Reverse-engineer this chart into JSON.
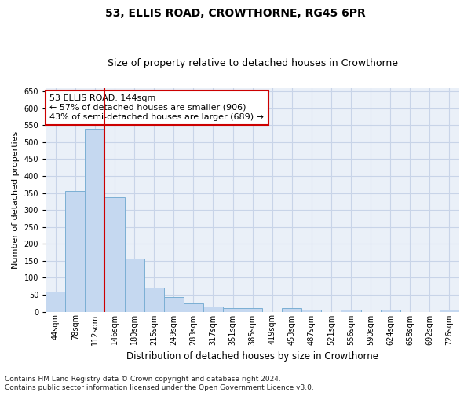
{
  "title": "53, ELLIS ROAD, CROWTHORNE, RG45 6PR",
  "subtitle": "Size of property relative to detached houses in Crowthorne",
  "xlabel": "Distribution of detached houses by size in Crowthorne",
  "ylabel": "Number of detached properties",
  "bar_color": "#c5d8f0",
  "bar_edge_color": "#7bafd4",
  "bar_labels": [
    "44sqm",
    "78sqm",
    "112sqm",
    "146sqm",
    "180sqm",
    "215sqm",
    "249sqm",
    "283sqm",
    "317sqm",
    "351sqm",
    "385sqm",
    "419sqm",
    "453sqm",
    "487sqm",
    "521sqm",
    "556sqm",
    "590sqm",
    "624sqm",
    "658sqm",
    "692sqm",
    "726sqm"
  ],
  "bar_values": [
    58,
    355,
    540,
    338,
    157,
    70,
    42,
    25,
    15,
    10,
    10,
    0,
    10,
    5,
    0,
    5,
    0,
    5,
    0,
    0,
    5
  ],
  "ylim": [
    0,
    660
  ],
  "yticks": [
    0,
    50,
    100,
    150,
    200,
    250,
    300,
    350,
    400,
    450,
    500,
    550,
    600,
    650
  ],
  "property_line_x": 2.5,
  "annotation_line1": "53 ELLIS ROAD: 144sqm",
  "annotation_line2": "← 57% of detached houses are smaller (906)",
  "annotation_line3": "43% of semi-detached houses are larger (689) →",
  "red_line_color": "#cc0000",
  "grid_color": "#c8d4e8",
  "background_color": "#eaf0f8",
  "footnote": "Contains HM Land Registry data © Crown copyright and database right 2024.\nContains public sector information licensed under the Open Government Licence v3.0.",
  "title_fontsize": 10,
  "subtitle_fontsize": 9,
  "xlabel_fontsize": 8.5,
  "ylabel_fontsize": 8,
  "tick_fontsize": 7,
  "annot_fontsize": 8,
  "footnote_fontsize": 6.5
}
